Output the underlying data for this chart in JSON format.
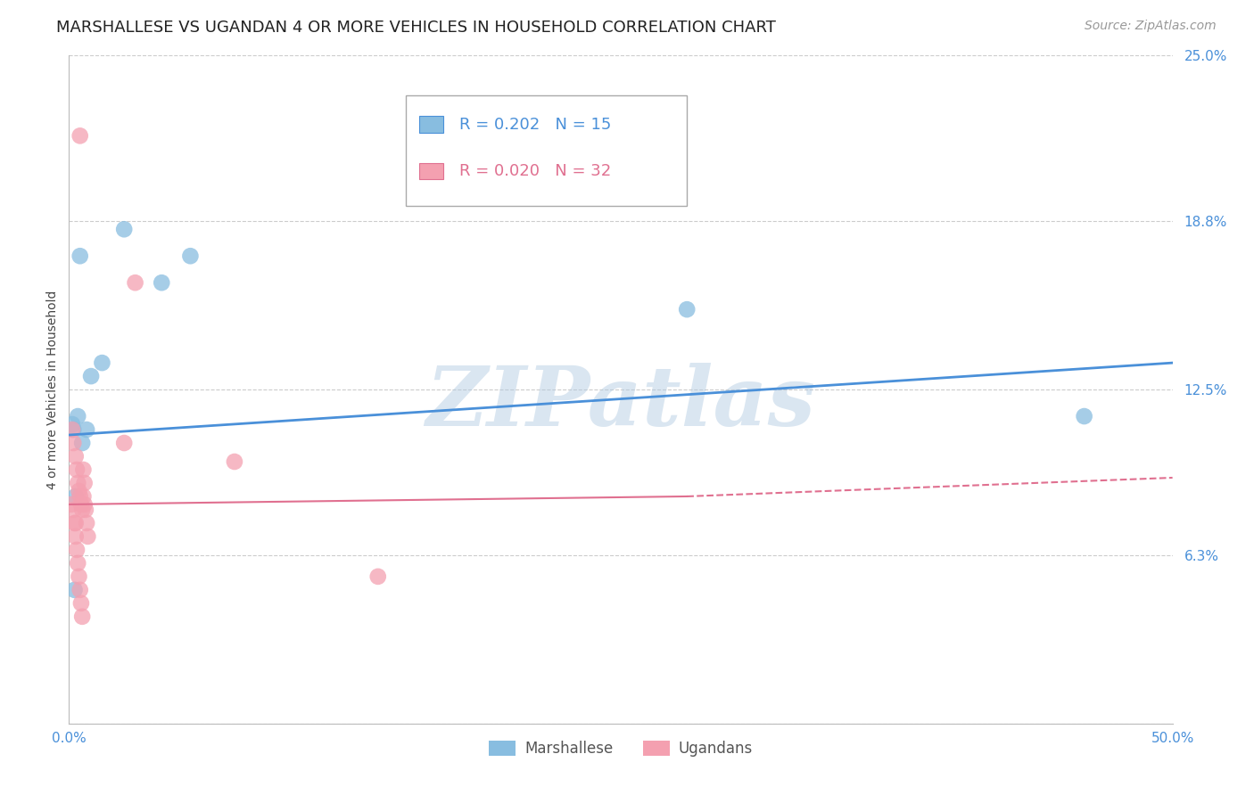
{
  "title": "MARSHALLESE VS UGANDAN 4 OR MORE VEHICLES IN HOUSEHOLD CORRELATION CHART",
  "source": "Source: ZipAtlas.com",
  "ylabel": "4 or more Vehicles in Household",
  "xlim": [
    0,
    50
  ],
  "ylim": [
    0,
    25
  ],
  "xticks": [
    0,
    10,
    20,
    30,
    40,
    50
  ],
  "xticklabels": [
    "0.0%",
    "",
    "",
    "",
    "",
    "50.0%"
  ],
  "ytick_positions": [
    0,
    6.3,
    12.5,
    18.8,
    25.0
  ],
  "ytick_labels": [
    "",
    "6.3%",
    "12.5%",
    "18.8%",
    "25.0%"
  ],
  "blue_label": "Marshallese",
  "pink_label": "Ugandans",
  "legend_blue_R": "R = 0.202",
  "legend_blue_N": "N = 15",
  "legend_pink_R": "R = 0.020",
  "legend_pink_N": "N = 32",
  "blue_color": "#88bde0",
  "pink_color": "#f4a0b0",
  "blue_line_color": "#4a90d9",
  "pink_line_color": "#e07090",
  "blue_scatter_x": [
    0.5,
    2.5,
    5.5,
    4.2,
    1.5,
    1.0,
    0.4,
    0.2,
    0.8,
    0.6,
    28.0,
    46.0,
    0.3,
    0.25,
    0.15
  ],
  "blue_scatter_y": [
    17.5,
    18.5,
    17.5,
    16.5,
    13.5,
    13.0,
    11.5,
    11.0,
    11.0,
    10.5,
    15.5,
    11.5,
    8.5,
    5.0,
    11.2
  ],
  "pink_scatter_x": [
    0.5,
    3.0,
    0.15,
    0.2,
    0.3,
    0.35,
    0.4,
    0.45,
    0.5,
    0.55,
    0.6,
    0.65,
    0.7,
    0.25,
    0.3,
    0.35,
    0.4,
    0.45,
    0.5,
    0.55,
    0.6,
    0.65,
    0.7,
    0.75,
    0.8,
    0.85,
    7.5,
    14.0,
    2.5,
    0.3,
    0.2,
    0.1
  ],
  "pink_scatter_y": [
    22.0,
    16.5,
    11.0,
    10.5,
    10.0,
    9.5,
    9.0,
    8.7,
    8.5,
    8.2,
    8.0,
    9.5,
    9.0,
    7.5,
    7.0,
    6.5,
    6.0,
    5.5,
    5.0,
    4.5,
    4.0,
    8.5,
    8.2,
    8.0,
    7.5,
    7.0,
    9.8,
    5.5,
    10.5,
    7.5,
    8.0,
    8.2
  ],
  "blue_trend_start_x": 0,
  "blue_trend_end_x": 50,
  "blue_trend_start_y": 10.8,
  "blue_trend_end_y": 13.5,
  "pink_trend_start_x": 0,
  "pink_trend_end_x": 28,
  "pink_trend_start_y": 8.2,
  "pink_trend_end_y": 8.5,
  "pink_dash_start_x": 28,
  "pink_dash_end_x": 50,
  "pink_dash_start_y": 8.5,
  "pink_dash_end_y": 9.2,
  "watermark": "ZIPatlas",
  "background_color": "#ffffff",
  "grid_color": "#cccccc",
  "title_fontsize": 13,
  "axis_label_fontsize": 10,
  "tick_fontsize": 11,
  "source_fontsize": 10
}
